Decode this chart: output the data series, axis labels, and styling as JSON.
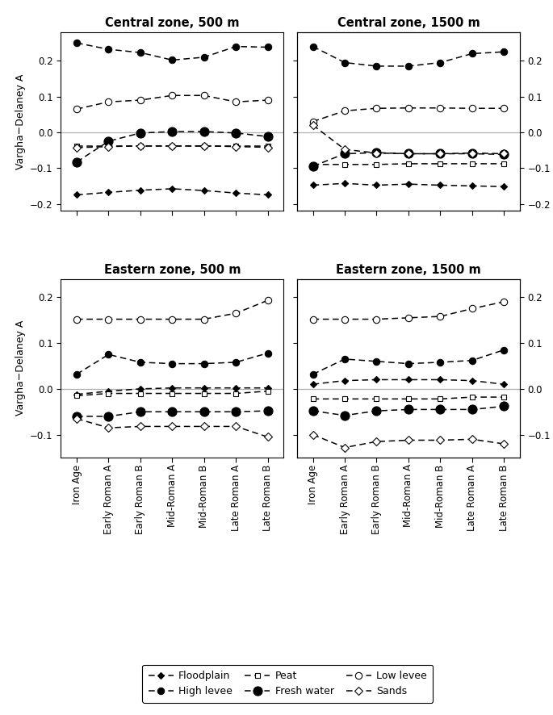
{
  "x_labels": [
    "Iron Age",
    "Early Roman A",
    "Early Roman B",
    "Mid-Roman A",
    "Mid-Roman B",
    "Late Roman A",
    "Late Roman B"
  ],
  "titles": [
    "Central zone, 500 m",
    "Central zone, 1500 m",
    "Eastern zone, 500 m",
    "Eastern zone, 1500 m"
  ],
  "ylabel": "Vargha−Delaney A",
  "central_500": {
    "floodplain": [
      -0.175,
      -0.168,
      -0.162,
      -0.158,
      -0.163,
      -0.17,
      -0.175
    ],
    "high_levee": [
      0.25,
      0.232,
      0.223,
      0.202,
      0.21,
      0.24,
      0.238
    ],
    "peat": [
      -0.038,
      -0.038,
      -0.038,
      -0.038,
      -0.038,
      -0.038,
      -0.038
    ],
    "fresh_water": [
      -0.083,
      -0.025,
      -0.002,
      0.002,
      0.002,
      -0.002,
      -0.012
    ],
    "low_levee": [
      0.065,
      0.085,
      0.09,
      0.103,
      0.103,
      0.085,
      0.09
    ],
    "sands": [
      -0.043,
      -0.04,
      -0.038,
      -0.038,
      -0.038,
      -0.04,
      -0.042
    ]
  },
  "central_1500": {
    "floodplain": [
      -0.148,
      -0.143,
      -0.148,
      -0.145,
      -0.148,
      -0.15,
      -0.152
    ],
    "high_levee": [
      0.24,
      0.195,
      0.185,
      0.185,
      0.195,
      0.22,
      0.225
    ],
    "peat": [
      -0.09,
      -0.09,
      -0.09,
      -0.088,
      -0.088,
      -0.088,
      -0.088
    ],
    "fresh_water": [
      -0.095,
      -0.06,
      -0.057,
      -0.06,
      -0.06,
      -0.06,
      -0.062
    ],
    "low_levee": [
      0.03,
      0.06,
      0.067,
      0.068,
      0.068,
      0.067,
      0.067
    ],
    "sands": [
      0.02,
      -0.048,
      -0.058,
      -0.06,
      -0.06,
      -0.058,
      -0.06
    ]
  },
  "eastern_500": {
    "floodplain": [
      -0.012,
      -0.005,
      0.0,
      0.002,
      0.002,
      0.002,
      0.002
    ],
    "high_levee": [
      0.032,
      0.075,
      0.058,
      0.055,
      0.055,
      0.058,
      0.078
    ],
    "peat": [
      -0.015,
      -0.01,
      -0.01,
      -0.01,
      -0.01,
      -0.01,
      -0.005
    ],
    "fresh_water": [
      -0.06,
      -0.06,
      -0.05,
      -0.05,
      -0.05,
      -0.05,
      -0.048
    ],
    "low_levee": [
      0.152,
      0.152,
      0.152,
      0.152,
      0.152,
      0.165,
      0.193
    ],
    "sands": [
      -0.065,
      -0.085,
      -0.082,
      -0.082,
      -0.082,
      -0.082,
      -0.105
    ]
  },
  "eastern_1500": {
    "floodplain": [
      0.01,
      0.018,
      0.02,
      0.02,
      0.02,
      0.018,
      0.01
    ],
    "high_levee": [
      0.032,
      0.065,
      0.06,
      0.055,
      0.058,
      0.062,
      0.085
    ],
    "peat": [
      -0.022,
      -0.022,
      -0.022,
      -0.022,
      -0.022,
      -0.018,
      -0.018
    ],
    "fresh_water": [
      -0.048,
      -0.058,
      -0.048,
      -0.045,
      -0.045,
      -0.045,
      -0.038
    ],
    "low_levee": [
      0.152,
      0.152,
      0.152,
      0.155,
      0.158,
      0.175,
      0.19
    ],
    "sands": [
      -0.1,
      -0.128,
      -0.115,
      -0.112,
      -0.112,
      -0.11,
      -0.12
    ]
  },
  "series_order": [
    "floodplain",
    "high_levee",
    "peat",
    "fresh_water",
    "low_levee",
    "sands"
  ],
  "styles": {
    "floodplain": {
      "marker": "D",
      "mfc": "black",
      "mec": "black",
      "ms": 4.5
    },
    "high_levee": {
      "marker": "o",
      "mfc": "black",
      "mec": "black",
      "ms": 6
    },
    "peat": {
      "marker": "s",
      "mfc": "white",
      "mec": "black",
      "ms": 5
    },
    "fresh_water": {
      "marker": "o",
      "mfc": "black",
      "mec": "black",
      "ms": 8
    },
    "low_levee": {
      "marker": "o",
      "mfc": "white",
      "mec": "black",
      "ms": 6
    },
    "sands": {
      "marker": "D",
      "mfc": "white",
      "mec": "black",
      "ms": 5
    }
  },
  "ylim_central": [
    -0.22,
    0.28
  ],
  "yticks_central": [
    -0.2,
    -0.1,
    0.0,
    0.1,
    0.2
  ],
  "ylim_eastern": [
    -0.15,
    0.24
  ],
  "yticks_eastern": [
    -0.1,
    0.0,
    0.1,
    0.2
  ],
  "hline_color": "#b0b0b0",
  "legend_order": [
    "floodplain",
    "high_levee",
    "peat",
    "fresh_water",
    "low_levee",
    "sands"
  ],
  "legend_labels": {
    "floodplain": "Floodplain",
    "high_levee": "High levee",
    "peat": "Peat",
    "fresh_water": "Fresh water",
    "low_levee": "Low levee",
    "sands": "Sands"
  }
}
